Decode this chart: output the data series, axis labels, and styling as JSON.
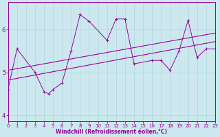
{
  "xlabel": "Windchill (Refroidissement éolien,°C)",
  "bg_color": "#cce8ee",
  "line_color": "#990099",
  "xlim": [
    0,
    23
  ],
  "ylim": [
    3.85,
    6.65
  ],
  "xticks": [
    0,
    1,
    2,
    3,
    4,
    5,
    6,
    7,
    8,
    9,
    10,
    11,
    12,
    13,
    14,
    15,
    16,
    17,
    18,
    19,
    20,
    21,
    22,
    23
  ],
  "yticks": [
    4,
    5,
    6
  ],
  "series": [
    [
      0,
      4.6
    ],
    [
      1,
      5.55
    ],
    [
      3,
      5.0
    ],
    [
      4,
      4.55
    ],
    [
      4.5,
      4.5
    ],
    [
      5,
      4.6
    ],
    [
      6,
      4.75
    ],
    [
      7,
      5.5
    ],
    [
      8,
      6.35
    ],
    [
      9,
      6.2
    ],
    [
      11,
      5.75
    ],
    [
      12,
      6.25
    ],
    [
      13,
      6.25
    ],
    [
      14,
      5.2
    ],
    [
      16,
      5.28
    ],
    [
      17,
      5.28
    ],
    [
      18,
      5.05
    ],
    [
      19,
      5.5
    ],
    [
      20,
      6.22
    ],
    [
      21,
      5.35
    ],
    [
      22,
      5.55
    ],
    [
      23,
      5.55
    ]
  ],
  "trend_line1": [
    [
      0,
      4.82
    ],
    [
      23,
      5.72
    ]
  ],
  "trend_line2": [
    [
      0,
      5.05
    ],
    [
      23,
      5.92
    ]
  ],
  "grid_color": "#aad8dd",
  "tick_fontsize": 5,
  "xlabel_fontsize": 5.5
}
